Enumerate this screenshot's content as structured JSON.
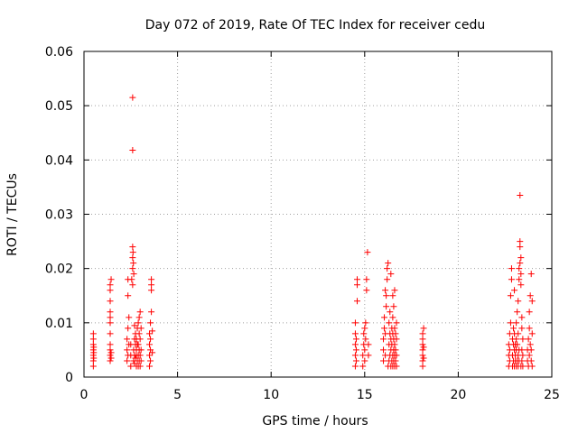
{
  "chart_data": {
    "type": "scatter",
    "title": "Day 072 of 2019, Rate Of TEC Index for receiver cedu",
    "xlabel": "GPS time / hours",
    "ylabel": "ROTI / TECUs",
    "xlim": [
      0,
      25
    ],
    "ylim": [
      0,
      0.06
    ],
    "xticks": [
      0,
      5,
      10,
      15,
      20,
      25
    ],
    "xtick_labels": [
      "0",
      "5",
      "10",
      "15",
      "20",
      "25"
    ],
    "yticks": [
      0,
      0.01,
      0.02,
      0.03,
      0.04,
      0.05,
      0.06
    ],
    "ytick_labels": [
      "0",
      "0.01",
      "0.02",
      "0.03",
      "0.04",
      "0.05",
      "0.06"
    ],
    "grid": true,
    "marker": "+",
    "series": [
      {
        "name": "ROTI",
        "color": "#ff0000",
        "points": [
          [
            0.5,
            0.002
          ],
          [
            0.5,
            0.003
          ],
          [
            0.5,
            0.004
          ],
          [
            0.5,
            0.005
          ],
          [
            0.5,
            0.006
          ],
          [
            0.5,
            0.007
          ],
          [
            0.5,
            0.008
          ],
          [
            0.52,
            0.0035
          ],
          [
            0.52,
            0.0045
          ],
          [
            0.52,
            0.0055
          ],
          [
            1.4,
            0.003
          ],
          [
            1.4,
            0.004
          ],
          [
            1.4,
            0.005
          ],
          [
            1.4,
            0.006
          ],
          [
            1.4,
            0.008
          ],
          [
            1.4,
            0.01
          ],
          [
            1.4,
            0.011
          ],
          [
            1.4,
            0.012
          ],
          [
            1.4,
            0.014
          ],
          [
            1.4,
            0.016
          ],
          [
            1.4,
            0.017
          ],
          [
            1.45,
            0.018
          ],
          [
            1.45,
            0.0035
          ],
          [
            1.45,
            0.0045
          ],
          [
            2.3,
            0.003
          ],
          [
            2.3,
            0.005
          ],
          [
            2.3,
            0.007
          ],
          [
            2.35,
            0.004
          ],
          [
            2.35,
            0.009
          ],
          [
            2.35,
            0.015
          ],
          [
            2.35,
            0.018
          ],
          [
            2.4,
            0.006
          ],
          [
            2.4,
            0.011
          ],
          [
            2.5,
            0.002
          ],
          [
            2.5,
            0.004
          ],
          [
            2.5,
            0.006
          ],
          [
            2.55,
            0.018
          ],
          [
            2.6,
            0.0515
          ],
          [
            2.6,
            0.0418
          ],
          [
            2.6,
            0.024
          ],
          [
            2.6,
            0.022
          ],
          [
            2.6,
            0.02
          ],
          [
            2.6,
            0.017
          ],
          [
            2.62,
            0.023
          ],
          [
            2.64,
            0.021
          ],
          [
            2.66,
            0.019
          ],
          [
            2.65,
            0.003
          ],
          [
            2.65,
            0.005
          ],
          [
            2.7,
            0.0025
          ],
          [
            2.7,
            0.004
          ],
          [
            2.7,
            0.007
          ],
          [
            2.7,
            0.0095
          ],
          [
            2.75,
            0.0035
          ],
          [
            2.75,
            0.006
          ],
          [
            2.75,
            0.008
          ],
          [
            2.8,
            0.002
          ],
          [
            2.8,
            0.004
          ],
          [
            2.8,
            0.005
          ],
          [
            2.8,
            0.007
          ],
          [
            2.85,
            0.003
          ],
          [
            2.85,
            0.006
          ],
          [
            2.85,
            0.009
          ],
          [
            2.9,
            0.002
          ],
          [
            2.9,
            0.004
          ],
          [
            2.9,
            0.006
          ],
          [
            2.9,
            0.01
          ],
          [
            2.95,
            0.003
          ],
          [
            2.95,
            0.005
          ],
          [
            2.95,
            0.008
          ],
          [
            2.95,
            0.011
          ],
          [
            3.0,
            0.002
          ],
          [
            3.0,
            0.004
          ],
          [
            3.0,
            0.007
          ],
          [
            3.0,
            0.012
          ],
          [
            3.05,
            0.003
          ],
          [
            3.05,
            0.005
          ],
          [
            3.05,
            0.009
          ],
          [
            3.5,
            0.002
          ],
          [
            3.5,
            0.004
          ],
          [
            3.5,
            0.006
          ],
          [
            3.5,
            0.008
          ],
          [
            3.55,
            0.003
          ],
          [
            3.55,
            0.005
          ],
          [
            3.55,
            0.007
          ],
          [
            3.55,
            0.01
          ],
          [
            3.6,
            0.012
          ],
          [
            3.6,
            0.016
          ],
          [
            3.6,
            0.017
          ],
          [
            3.6,
            0.018
          ],
          [
            3.65,
            0.0045
          ],
          [
            3.65,
            0.0085
          ],
          [
            14.5,
            0.002
          ],
          [
            14.5,
            0.004
          ],
          [
            14.5,
            0.006
          ],
          [
            14.5,
            0.008
          ],
          [
            14.5,
            0.01
          ],
          [
            14.55,
            0.003
          ],
          [
            14.55,
            0.005
          ],
          [
            14.55,
            0.007
          ],
          [
            14.6,
            0.014
          ],
          [
            14.6,
            0.017
          ],
          [
            14.6,
            0.018
          ],
          [
            14.9,
            0.002
          ],
          [
            14.9,
            0.004
          ],
          [
            14.95,
            0.006
          ],
          [
            14.95,
            0.008
          ],
          [
            15.0,
            0.003
          ],
          [
            15.0,
            0.005
          ],
          [
            15.0,
            0.009
          ],
          [
            15.05,
            0.007
          ],
          [
            15.05,
            0.01
          ],
          [
            15.1,
            0.016
          ],
          [
            15.1,
            0.018
          ],
          [
            15.15,
            0.023
          ],
          [
            15.2,
            0.004
          ],
          [
            15.2,
            0.006
          ],
          [
            16.0,
            0.003
          ],
          [
            16.0,
            0.005
          ],
          [
            16.0,
            0.007
          ],
          [
            16.05,
            0.009
          ],
          [
            16.05,
            0.011
          ],
          [
            16.1,
            0.004
          ],
          [
            16.1,
            0.008
          ],
          [
            16.1,
            0.016
          ],
          [
            16.15,
            0.013
          ],
          [
            16.15,
            0.015
          ],
          [
            16.2,
            0.018
          ],
          [
            16.2,
            0.02
          ],
          [
            16.25,
            0.021
          ],
          [
            16.25,
            0.002
          ],
          [
            16.3,
            0.003
          ],
          [
            16.3,
            0.006
          ],
          [
            16.3,
            0.01
          ],
          [
            16.35,
            0.004
          ],
          [
            16.35,
            0.008
          ],
          [
            16.35,
            0.012
          ],
          [
            16.4,
            0.002
          ],
          [
            16.4,
            0.005
          ],
          [
            16.4,
            0.007
          ],
          [
            16.4,
            0.019
          ],
          [
            16.45,
            0.003
          ],
          [
            16.45,
            0.006
          ],
          [
            16.45,
            0.009
          ],
          [
            16.5,
            0.002
          ],
          [
            16.5,
            0.004
          ],
          [
            16.5,
            0.008
          ],
          [
            16.5,
            0.011
          ],
          [
            16.5,
            0.015
          ],
          [
            16.55,
            0.003
          ],
          [
            16.55,
            0.005
          ],
          [
            16.55,
            0.007
          ],
          [
            16.55,
            0.013
          ],
          [
            16.6,
            0.002
          ],
          [
            16.6,
            0.004
          ],
          [
            16.6,
            0.006
          ],
          [
            16.6,
            0.009
          ],
          [
            16.6,
            0.016
          ],
          [
            16.65,
            0.003
          ],
          [
            16.65,
            0.005
          ],
          [
            16.65,
            0.008
          ],
          [
            16.7,
            0.002
          ],
          [
            16.7,
            0.004
          ],
          [
            16.7,
            0.007
          ],
          [
            16.7,
            0.01
          ],
          [
            18.1,
            0.002
          ],
          [
            18.1,
            0.003
          ],
          [
            18.1,
            0.004
          ],
          [
            18.1,
            0.005
          ],
          [
            18.1,
            0.006
          ],
          [
            18.1,
            0.007
          ],
          [
            18.1,
            0.008
          ],
          [
            18.15,
            0.009
          ],
          [
            18.15,
            0.0035
          ],
          [
            18.15,
            0.0055
          ],
          [
            22.7,
            0.002
          ],
          [
            22.7,
            0.004
          ],
          [
            22.7,
            0.006
          ],
          [
            22.75,
            0.003
          ],
          [
            22.75,
            0.005
          ],
          [
            22.75,
            0.008
          ],
          [
            22.8,
            0.01
          ],
          [
            22.8,
            0.015
          ],
          [
            22.85,
            0.018
          ],
          [
            22.85,
            0.02
          ],
          [
            22.9,
            0.002
          ],
          [
            22.9,
            0.004
          ],
          [
            22.9,
            0.007
          ],
          [
            22.95,
            0.003
          ],
          [
            22.95,
            0.006
          ],
          [
            22.95,
            0.009
          ],
          [
            23.0,
            0.002
          ],
          [
            23.0,
            0.005
          ],
          [
            23.0,
            0.008
          ],
          [
            23.0,
            0.016
          ],
          [
            23.05,
            0.003
          ],
          [
            23.05,
            0.004
          ],
          [
            23.05,
            0.006
          ],
          [
            23.1,
            0.002
          ],
          [
            23.1,
            0.005
          ],
          [
            23.1,
            0.007
          ],
          [
            23.1,
            0.01
          ],
          [
            23.15,
            0.003
          ],
          [
            23.15,
            0.006
          ],
          [
            23.15,
            0.012
          ],
          [
            23.2,
            0.002
          ],
          [
            23.2,
            0.004
          ],
          [
            23.2,
            0.008
          ],
          [
            23.2,
            0.014
          ],
          [
            23.25,
            0.003
          ],
          [
            23.25,
            0.005
          ],
          [
            23.25,
            0.018
          ],
          [
            23.25,
            0.02
          ],
          [
            23.3,
            0.0335
          ],
          [
            23.3,
            0.025
          ],
          [
            23.3,
            0.024
          ],
          [
            23.3,
            0.021
          ],
          [
            23.35,
            0.022
          ],
          [
            23.35,
            0.019
          ],
          [
            23.35,
            0.017
          ],
          [
            23.35,
            0.002
          ],
          [
            23.4,
            0.003
          ],
          [
            23.4,
            0.005
          ],
          [
            23.4,
            0.009
          ],
          [
            23.4,
            0.011
          ],
          [
            23.45,
            0.002
          ],
          [
            23.45,
            0.004
          ],
          [
            23.45,
            0.007
          ],
          [
            23.7,
            0.003
          ],
          [
            23.7,
            0.005
          ],
          [
            23.75,
            0.002
          ],
          [
            23.75,
            0.007
          ],
          [
            23.8,
            0.004
          ],
          [
            23.8,
            0.009
          ],
          [
            23.8,
            0.012
          ],
          [
            23.85,
            0.006
          ],
          [
            23.85,
            0.015
          ],
          [
            23.9,
            0.003
          ],
          [
            23.9,
            0.005
          ],
          [
            23.9,
            0.019
          ],
          [
            23.95,
            0.002
          ],
          [
            23.95,
            0.008
          ],
          [
            23.95,
            0.014
          ]
        ]
      }
    ]
  }
}
